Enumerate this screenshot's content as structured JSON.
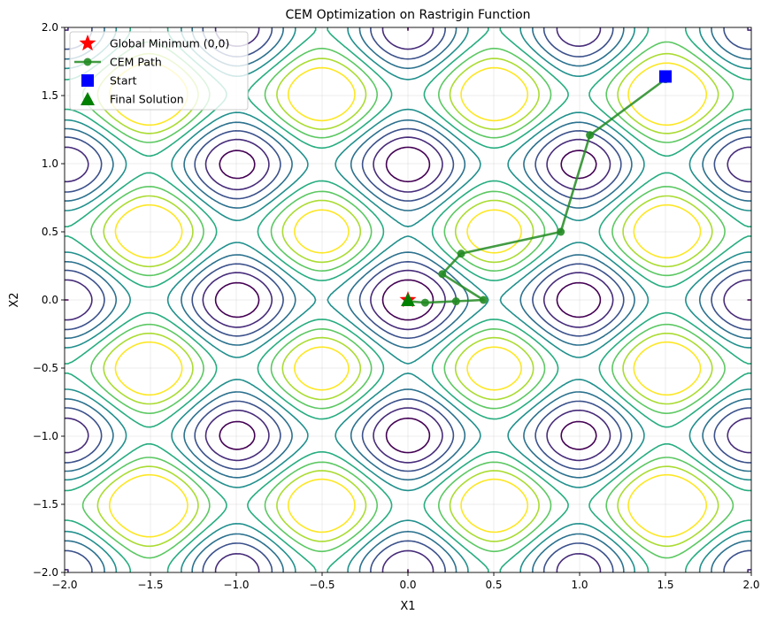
{
  "chart_data": {
    "type": "line",
    "title": "CEM Optimization on Rastrigin Function",
    "xlabel": "X1",
    "ylabel": "X2",
    "xlim": [
      -2.0,
      2.0
    ],
    "ylim": [
      -2.0,
      2.0
    ],
    "xticks": [
      -2.0,
      -1.5,
      -1.0,
      -0.5,
      0.0,
      0.5,
      1.0,
      1.5,
      2.0
    ],
    "yticks": [
      -2.0,
      -1.5,
      -1.0,
      -0.5,
      0.0,
      0.5,
      1.0,
      1.5,
      2.0
    ],
    "xtick_labels": [
      "−2.0",
      "−1.5",
      "−1.0",
      "−0.5",
      "0.0",
      "0.5",
      "1.0",
      "1.5",
      "2.0"
    ],
    "ytick_labels": [
      "−2.0",
      "−1.5",
      "−1.0",
      "−0.5",
      "0.0",
      "0.5",
      "1.0",
      "1.5",
      "2.0"
    ],
    "grid": true,
    "legend_position": "top-left",
    "contour": {
      "function": "rastrigin",
      "levels": [
        4,
        8,
        12,
        16,
        20,
        24,
        28,
        32,
        36
      ],
      "colormap": [
        "#440154",
        "#472c7a",
        "#3b518b",
        "#2c718e",
        "#21908d",
        "#27ad81",
        "#5cc863",
        "#aadc32",
        "#fde725"
      ]
    },
    "series": [
      {
        "name": "Global Minimum (0,0)",
        "marker": "star",
        "color": "#ff0000",
        "points": [
          [
            0.0,
            0.0
          ]
        ]
      },
      {
        "name": "CEM Path",
        "marker": "circle-line",
        "color": "#228b22",
        "points": [
          [
            1.5,
            1.62
          ],
          [
            1.06,
            1.21
          ],
          [
            0.89,
            0.5
          ],
          [
            0.31,
            0.34
          ],
          [
            0.2,
            0.19
          ],
          [
            0.44,
            0.0
          ],
          [
            0.28,
            -0.01
          ],
          [
            0.1,
            -0.02
          ],
          [
            0.0,
            -0.01
          ]
        ]
      },
      {
        "name": "Start",
        "marker": "square",
        "color": "#0000ff",
        "points": [
          [
            1.5,
            1.64
          ]
        ]
      },
      {
        "name": "Final Solution",
        "marker": "triangle",
        "color": "#008000",
        "points": [
          [
            0.0,
            0.0
          ]
        ]
      }
    ]
  }
}
